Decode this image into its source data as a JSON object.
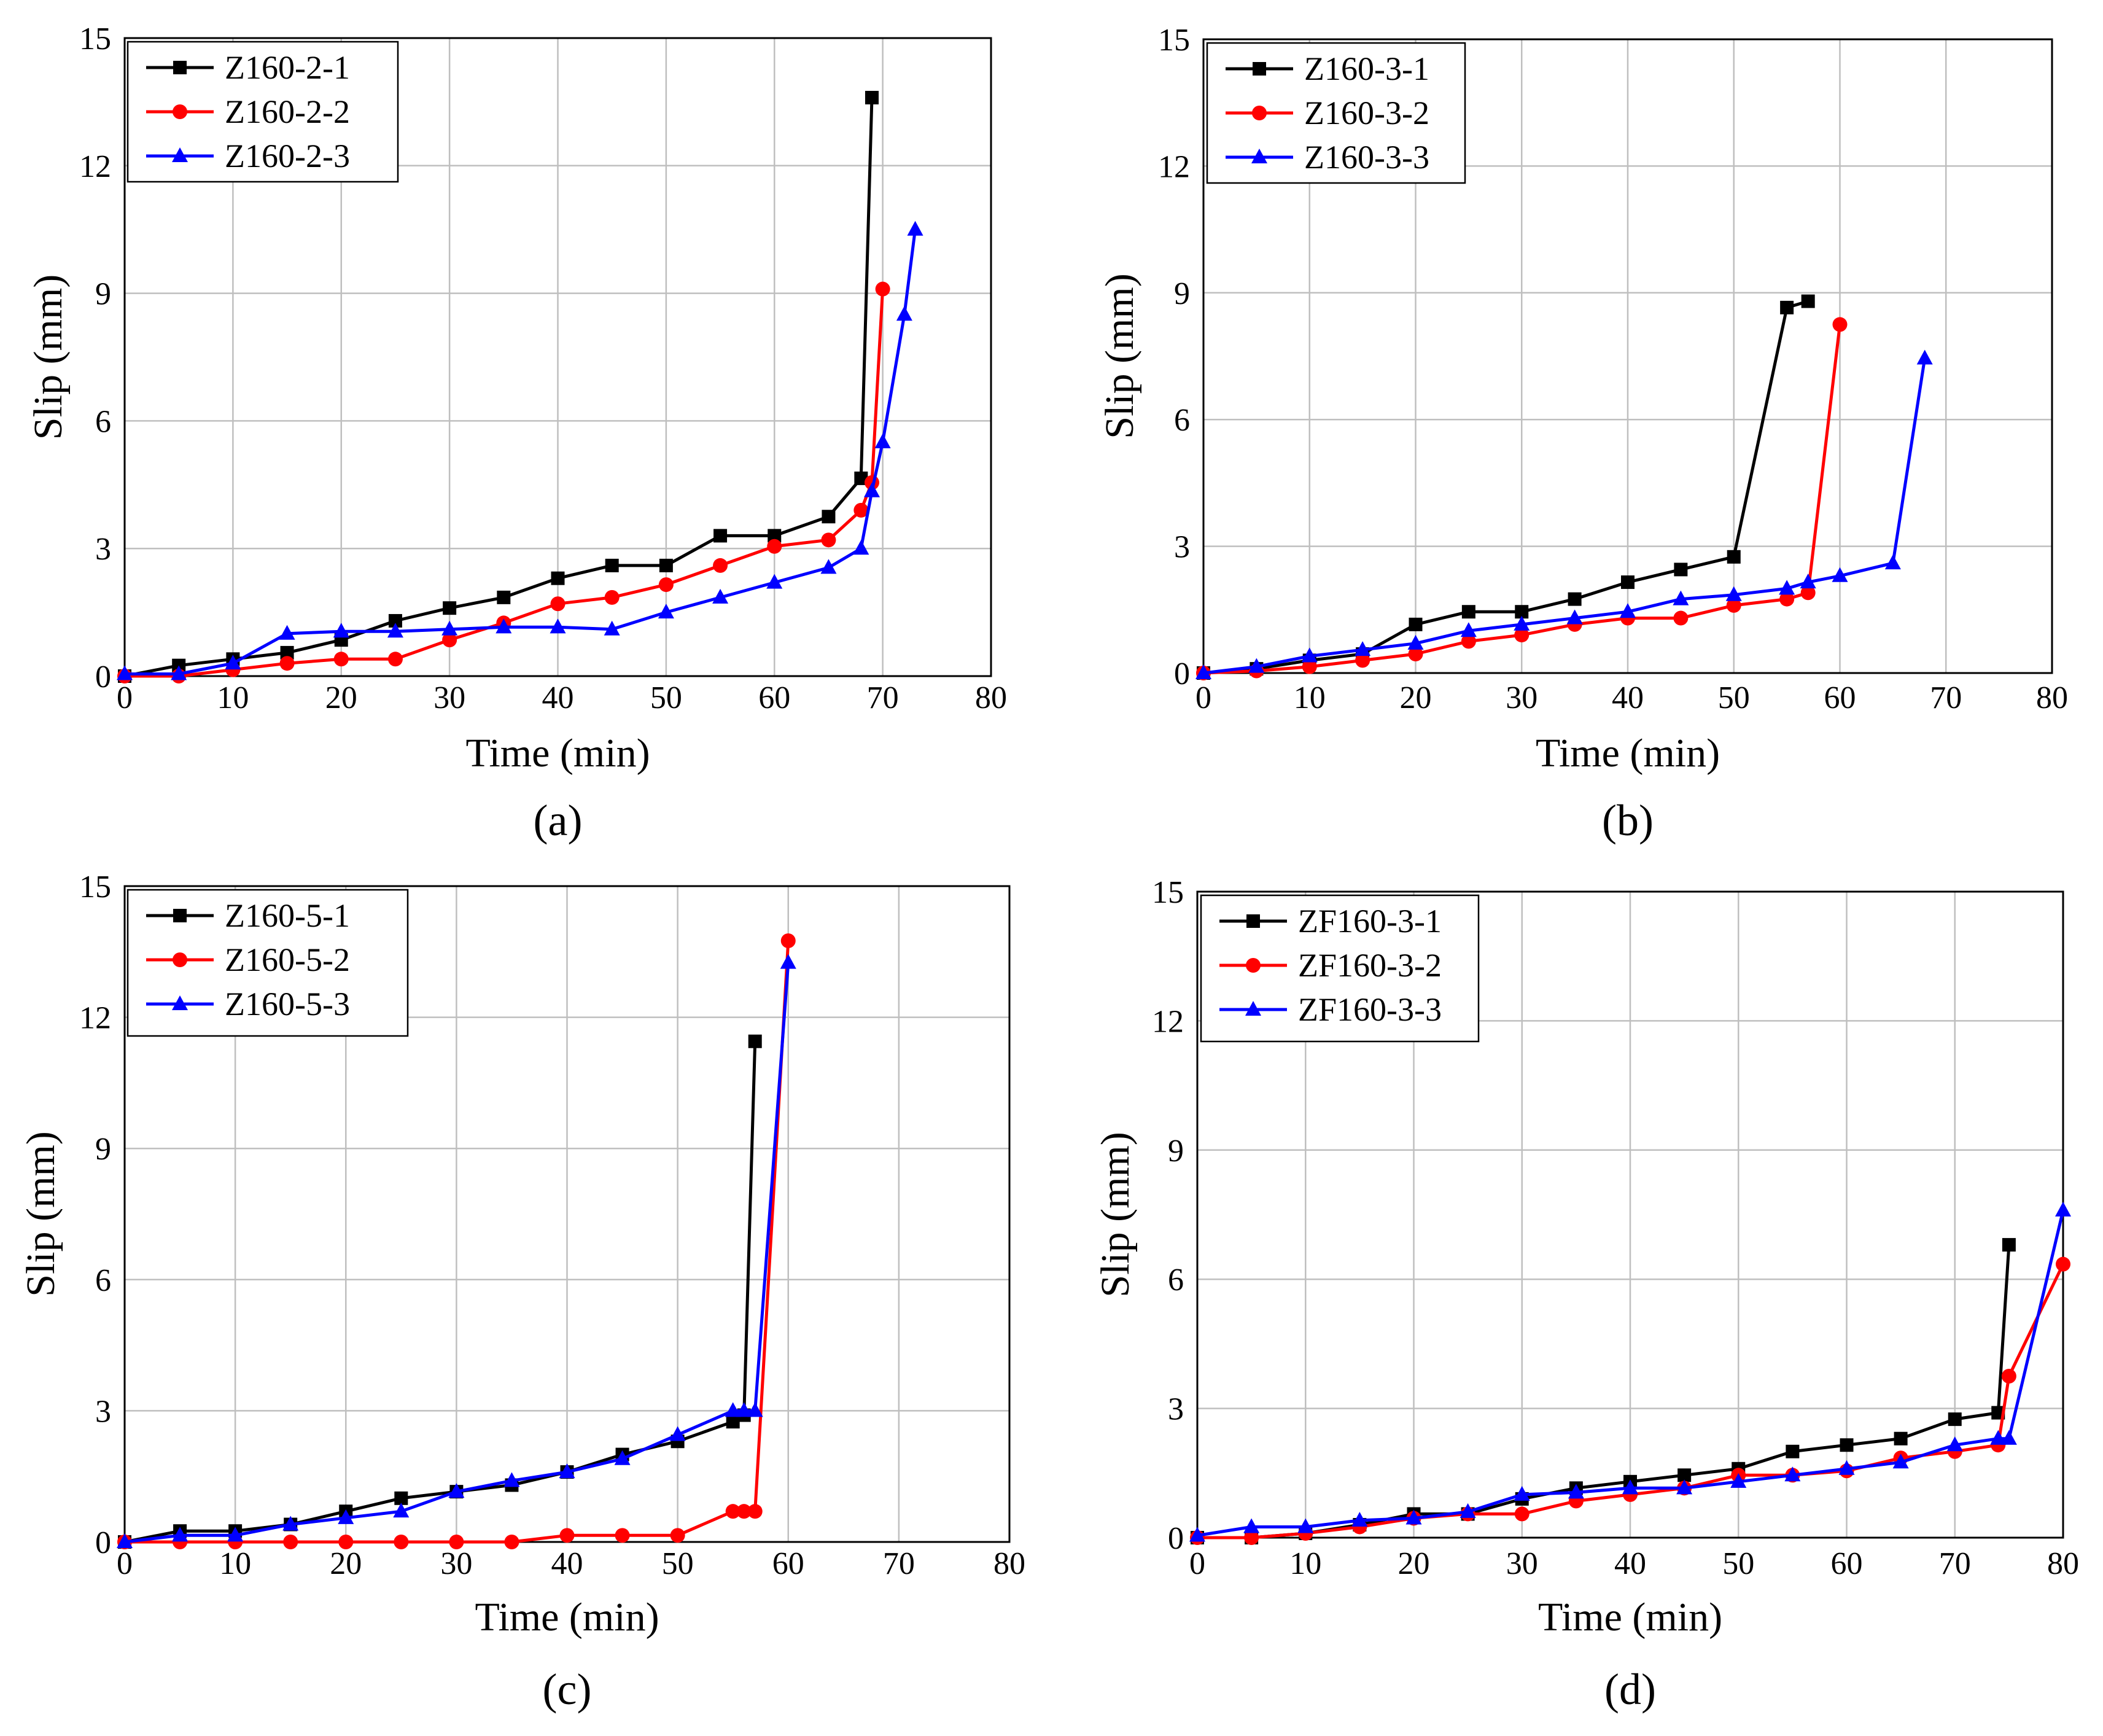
{
  "colors": {
    "series1": "#000000",
    "series2": "#ff0000",
    "series3": "#0000ff",
    "grid": "#bfbfbf",
    "frame": "#000000"
  },
  "chart_data": [
    {
      "panel_label": "(a)",
      "type": "line",
      "xlabel": "Time (min)",
      "ylabel": "Slip (mm)",
      "xlim": [
        0,
        80
      ],
      "ylim": [
        0,
        15
      ],
      "xticks": [
        0,
        10,
        20,
        30,
        40,
        50,
        60,
        70,
        80
      ],
      "yticks": [
        0,
        3,
        6,
        9,
        12,
        15
      ],
      "grid": true,
      "legend_position": "top-left",
      "series": [
        {
          "name": "Z160-2-1",
          "marker": "square",
          "x": [
            0,
            5,
            10,
            15,
            20,
            25,
            30,
            35,
            40,
            45,
            50,
            55,
            60,
            65,
            68,
            69
          ],
          "y": [
            0,
            0.25,
            0.4,
            0.55,
            0.85,
            1.3,
            1.6,
            1.85,
            2.3,
            2.6,
            2.6,
            3.3,
            3.3,
            3.75,
            4.65,
            13.6
          ]
        },
        {
          "name": "Z160-2-2",
          "marker": "circle",
          "x": [
            0,
            5,
            10,
            15,
            20,
            25,
            30,
            35,
            40,
            45,
            50,
            55,
            60,
            65,
            68,
            69,
            70
          ],
          "y": [
            0,
            0,
            0.15,
            0.3,
            0.4,
            0.4,
            0.85,
            1.25,
            1.7,
            1.85,
            2.15,
            2.6,
            3.05,
            3.2,
            3.9,
            4.55,
            9.1
          ]
        },
        {
          "name": "Z160-2-3",
          "marker": "triangle",
          "x": [
            0,
            5,
            10,
            15,
            20,
            25,
            30,
            35,
            40,
            45,
            50,
            55,
            60,
            65,
            68,
            69,
            70,
            72,
            73
          ],
          "y": [
            0.05,
            0.05,
            0.3,
            1.0,
            1.05,
            1.05,
            1.1,
            1.15,
            1.15,
            1.1,
            1.5,
            1.85,
            2.2,
            2.55,
            3.0,
            4.35,
            5.5,
            8.5,
            10.5
          ]
        }
      ]
    },
    {
      "panel_label": "(b)",
      "type": "line",
      "xlabel": "Time (min)",
      "ylabel": "Slip (mm)",
      "xlim": [
        0,
        80
      ],
      "ylim": [
        0,
        15
      ],
      "xticks": [
        0,
        10,
        20,
        30,
        40,
        50,
        60,
        70,
        80
      ],
      "yticks": [
        0,
        3,
        6,
        9,
        12,
        15
      ],
      "grid": true,
      "legend_position": "top-left",
      "series": [
        {
          "name": "Z160-3-1",
          "marker": "square",
          "x": [
            0,
            5,
            10,
            15,
            20,
            25,
            30,
            35,
            40,
            45,
            50,
            55,
            57
          ],
          "y": [
            0,
            0.1,
            0.3,
            0.45,
            1.15,
            1.45,
            1.45,
            1.75,
            2.15,
            2.45,
            2.75,
            8.65,
            8.8
          ]
        },
        {
          "name": "Z160-3-2",
          "marker": "circle",
          "x": [
            0,
            5,
            10,
            15,
            20,
            25,
            30,
            35,
            40,
            45,
            50,
            55,
            57,
            60
          ],
          "y": [
            0,
            0.05,
            0.15,
            0.3,
            0.45,
            0.75,
            0.9,
            1.15,
            1.3,
            1.3,
            1.6,
            1.75,
            1.9,
            8.25
          ]
        },
        {
          "name": "Z160-3-3",
          "marker": "triangle",
          "x": [
            0,
            5,
            10,
            15,
            20,
            25,
            30,
            35,
            40,
            45,
            50,
            55,
            57,
            60,
            65,
            68
          ],
          "y": [
            0,
            0.15,
            0.4,
            0.55,
            0.7,
            1.0,
            1.15,
            1.3,
            1.45,
            1.75,
            1.85,
            2.0,
            2.15,
            2.3,
            2.6,
            7.45
          ]
        }
      ]
    },
    {
      "panel_label": "(c)",
      "type": "line",
      "xlabel": "Time (min)",
      "ylabel": "Slip (mm)",
      "xlim": [
        0,
        80
      ],
      "ylim": [
        0,
        15
      ],
      "xticks": [
        0,
        10,
        20,
        30,
        40,
        50,
        60,
        70,
        80
      ],
      "yticks": [
        0,
        3,
        6,
        9,
        12,
        15
      ],
      "grid": true,
      "legend_position": "top-left",
      "series": [
        {
          "name": "Z160-5-1",
          "marker": "square",
          "x": [
            0,
            5,
            10,
            15,
            20,
            25,
            30,
            35,
            40,
            45,
            50,
            55,
            56,
            57
          ],
          "y": [
            0,
            0.25,
            0.25,
            0.4,
            0.7,
            1.0,
            1.15,
            1.3,
            1.6,
            2.0,
            2.3,
            2.75,
            2.9,
            11.45
          ]
        },
        {
          "name": "Z160-5-2",
          "marker": "circle",
          "x": [
            0,
            5,
            10,
            15,
            20,
            25,
            30,
            35,
            40,
            45,
            50,
            55,
            56,
            57,
            60
          ],
          "y": [
            0,
            0,
            0,
            0,
            0,
            0,
            0,
            0,
            0.15,
            0.15,
            0.15,
            0.7,
            0.7,
            0.7,
            13.75
          ]
        },
        {
          "name": "Z160-5-3",
          "marker": "triangle",
          "x": [
            0,
            5,
            10,
            15,
            20,
            25,
            30,
            35,
            40,
            45,
            50,
            55,
            56,
            57,
            60
          ],
          "y": [
            0,
            0.15,
            0.15,
            0.4,
            0.55,
            0.7,
            1.15,
            1.4,
            1.6,
            1.9,
            2.45,
            3.0,
            3.0,
            3.0,
            13.25
          ]
        }
      ]
    },
    {
      "panel_label": "(d)",
      "type": "line",
      "xlabel": "Time (min)",
      "ylabel": "Slip (mm)",
      "xlim": [
        0,
        80
      ],
      "ylim": [
        0,
        15
      ],
      "xticks": [
        0,
        10,
        20,
        30,
        40,
        50,
        60,
        70,
        80
      ],
      "yticks": [
        0,
        3,
        6,
        9,
        12,
        15
      ],
      "grid": true,
      "legend_position": "top-left",
      "series": [
        {
          "name": "ZF160-3-1",
          "marker": "square",
          "x": [
            0,
            5,
            10,
            15,
            20,
            25,
            30,
            35,
            40,
            45,
            50,
            55,
            60,
            65,
            70,
            74,
            75
          ],
          "y": [
            0,
            0,
            0.1,
            0.3,
            0.55,
            0.55,
            0.9,
            1.15,
            1.3,
            1.45,
            1.6,
            2.0,
            2.15,
            2.3,
            2.75,
            2.9,
            6.8
          ]
        },
        {
          "name": "ZF160-3-2",
          "marker": "circle",
          "x": [
            0,
            5,
            10,
            15,
            20,
            25,
            30,
            35,
            40,
            45,
            50,
            55,
            60,
            65,
            70,
            74,
            75,
            80
          ],
          "y": [
            0,
            0,
            0.1,
            0.25,
            0.45,
            0.55,
            0.55,
            0.85,
            1.0,
            1.15,
            1.45,
            1.45,
            1.55,
            1.85,
            2.0,
            2.15,
            3.75,
            6.35
          ]
        },
        {
          "name": "ZF160-3-3",
          "marker": "triangle",
          "x": [
            0,
            5,
            10,
            15,
            20,
            25,
            30,
            35,
            40,
            45,
            50,
            55,
            60,
            65,
            70,
            74,
            75,
            80
          ],
          "y": [
            0.05,
            0.25,
            0.25,
            0.4,
            0.45,
            0.6,
            1.0,
            1.05,
            1.15,
            1.15,
            1.3,
            1.45,
            1.6,
            1.75,
            2.15,
            2.3,
            2.3,
            7.6
          ]
        }
      ]
    }
  ]
}
